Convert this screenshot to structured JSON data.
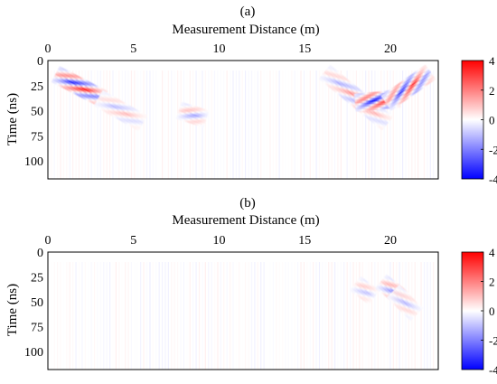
{
  "chart_data": [
    {
      "type": "heatmap",
      "panel_label": "(a)",
      "xlabel": "Measurement Distance (m)",
      "ylabel": "Time (ns)",
      "xlim": [
        0,
        22.8
      ],
      "ylim": [
        0,
        118
      ],
      "y_inverted": true,
      "x_axis_position": "top",
      "xticks": [
        0,
        5,
        10,
        15,
        20
      ],
      "yticks": [
        0,
        25,
        50,
        75,
        100
      ],
      "colorbar": {
        "ticks": [
          4,
          2,
          0,
          -2,
          -4
        ],
        "min": -4,
        "max": 4,
        "colormap": [
          "#0000ff",
          "#ffffff",
          "#ff0000"
        ]
      },
      "features": [
        {
          "x_start": 0.5,
          "t_start": 14,
          "x_end": 3.2,
          "t_end": 38,
          "amplitude": 4
        },
        {
          "x_start": 3.0,
          "t_start": 38,
          "x_end": 5.5,
          "t_end": 62,
          "amplitude": 1.2
        },
        {
          "x_start": 7.7,
          "t_start": 50,
          "x_end": 9.2,
          "t_end": 58,
          "amplitude": 1.5
        },
        {
          "x_start": 16.2,
          "t_start": 12,
          "x_end": 19.8,
          "t_end": 62,
          "amplitude": 1.8
        },
        {
          "x_start": 18.0,
          "t_start": 42,
          "x_end": 20.5,
          "t_end": 38,
          "amplitude": 4
        },
        {
          "x_start": 19.8,
          "t_start": 42,
          "x_end": 22.3,
          "t_end": 12,
          "amplitude": 3.5
        }
      ]
    },
    {
      "type": "heatmap",
      "panel_label": "(b)",
      "xlabel": "Measurement Distance (m)",
      "ylabel": "Time (ns)",
      "xlim": [
        0,
        22.8
      ],
      "ylim": [
        0,
        118
      ],
      "y_inverted": true,
      "x_axis_position": "top",
      "xticks": [
        0,
        5,
        10,
        15,
        20
      ],
      "yticks": [
        0,
        25,
        50,
        75,
        100
      ],
      "colorbar": {
        "ticks": [
          4,
          2,
          0,
          -2,
          -4
        ],
        "min": -4,
        "max": 4,
        "colormap": [
          "#0000ff",
          "#ffffff",
          "#ff0000"
        ]
      },
      "features": [
        {
          "x_start": 18.0,
          "t_start": 32,
          "x_end": 19.0,
          "t_end": 45,
          "amplitude": 1.2
        },
        {
          "x_start": 19.5,
          "t_start": 30,
          "x_end": 20.8,
          "t_end": 48,
          "amplitude": 2
        },
        {
          "x_start": 20.2,
          "t_start": 40,
          "x_end": 21.5,
          "t_end": 62,
          "amplitude": 1.2
        }
      ]
    }
  ]
}
